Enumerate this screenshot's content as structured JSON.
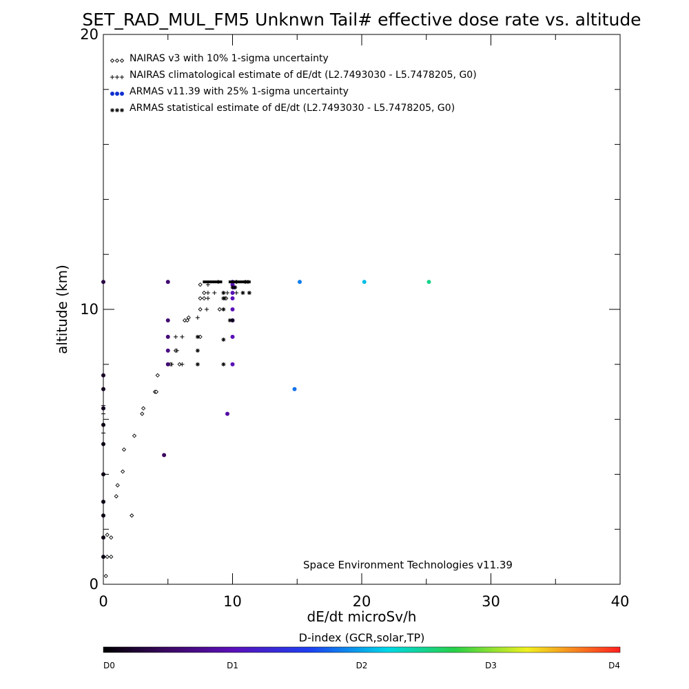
{
  "chart_data": {
    "type": "scatter",
    "title": "SET_RAD_MUL_FM5 Unknwn Tail#  effective dose rate vs. altitude",
    "xlabel": "dE/dt microSv/h",
    "ylabel": "altitude (km)",
    "xlim": [
      0,
      40
    ],
    "ylim": [
      0,
      20
    ],
    "x_ticks": [
      0,
      10,
      20,
      30,
      40
    ],
    "x_minor_ticks": [
      5,
      15,
      25,
      35
    ],
    "y_ticks": [
      0,
      10,
      20
    ],
    "y_minor_ticks": [
      2,
      4,
      6,
      8,
      12,
      14,
      16,
      18
    ],
    "grid": false,
    "legend_position": "top-left",
    "credit": "Space Environment Technologies v11.39",
    "legend": [
      {
        "marker": "diamond",
        "color": "#000000",
        "label": "NAIRAS v3 with 10% 1-sigma uncertainty"
      },
      {
        "marker": "plus",
        "color": "#000000",
        "label": "NAIRAS climatological estimate of dE/dt (L2.7493030 - L5.7478205, G0)"
      },
      {
        "marker": "dot",
        "color": "#1030d0",
        "label": "ARMAS v11.39 with 25% 1-sigma uncertainty"
      },
      {
        "marker": "asterisk",
        "color": "#000000",
        "label": "ARMAS statistical estimate of dE/dt (L2.7493030 - L5.7478205, G0)"
      }
    ],
    "series": [
      {
        "marker": "diamond",
        "x": [
          0.2,
          0.3,
          0.3,
          0.6,
          0.6,
          1.0,
          1.1,
          1.5,
          1.6,
          2.2,
          2.4,
          3.0,
          3.1,
          4.0,
          4.1,
          4.2,
          5.2,
          5.6,
          5.9,
          6.3,
          6.5,
          6.6,
          7.5,
          7.5,
          7.5,
          7.5,
          7.8,
          7.8,
          9.0,
          9.5,
          10.0,
          10.3
        ],
        "y": [
          0.3,
          1.0,
          1.8,
          1.0,
          1.7,
          3.2,
          3.6,
          4.1,
          4.9,
          2.5,
          5.4,
          6.2,
          6.4,
          7.0,
          7.0,
          7.6,
          8.0,
          8.5,
          8.0,
          9.6,
          9.6,
          9.7,
          9.0,
          10.0,
          10.4,
          10.9,
          10.4,
          10.6,
          10.0,
          10.4,
          10.6,
          11.0
        ]
      },
      {
        "marker": "plus",
        "x": [
          0.0,
          0.0,
          0.0,
          5.3,
          5.7,
          5.6,
          6.1,
          6.1,
          7.3,
          8.0,
          8.1,
          8.1,
          8.1,
          8.6,
          8.9,
          9.4,
          9.6,
          10.3,
          10.8,
          11.2
        ],
        "y": [
          5.5,
          6.2,
          6.5,
          8.0,
          8.5,
          9.0,
          9.0,
          8.0,
          9.7,
          10.0,
          10.4,
          10.6,
          10.9,
          10.6,
          11.0,
          10.4,
          10.6,
          10.6,
          10.6,
          11.0
        ]
      },
      {
        "marker": "dot",
        "x": [
          0.0,
          0.0,
          0.0,
          0.0,
          0.0,
          0.0,
          0.0,
          0.0,
          0.0,
          0.0,
          0.0,
          4.7,
          5.0,
          5.0,
          5.0,
          5.0,
          5.0,
          9.6,
          10.0,
          10.0,
          10.0,
          10.0,
          10.0,
          10.0,
          10.0,
          10.0,
          10.1,
          15.2,
          20.2,
          25.2,
          14.8
        ],
        "y": [
          11.0,
          7.6,
          7.1,
          6.4,
          5.8,
          5.1,
          4.0,
          3.0,
          2.5,
          1.7,
          1.0,
          4.7,
          11.0,
          9.6,
          9.0,
          8.5,
          8.0,
          6.2,
          11.0,
          10.4,
          10.0,
          9.6,
          9.0,
          8.0,
          10.6,
          10.9,
          10.8,
          11.0,
          11.0,
          11.0,
          7.1
        ],
        "color_index": [
          0.35,
          0.2,
          0.15,
          0.15,
          0.1,
          0.1,
          0.1,
          0.1,
          0.1,
          0.1,
          0.1,
          0.5,
          0.6,
          0.6,
          0.65,
          0.7,
          0.6,
          0.9,
          1.0,
          1.0,
          1.0,
          1.0,
          1.0,
          1.0,
          1.0,
          1.0,
          1.0,
          1.85,
          2.1,
          2.5,
          1.8
        ]
      },
      {
        "marker": "asterisk",
        "x": [
          7.3,
          7.3,
          7.3,
          9.3,
          9.3,
          9.8,
          9.3,
          9.3,
          9.3,
          10.0,
          10.2,
          10.8,
          11.3,
          11.0,
          10.0
        ],
        "y": [
          8.0,
          8.5,
          9.0,
          8.0,
          8.9,
          9.6,
          10.0,
          10.4,
          10.6,
          10.8,
          10.8,
          10.6,
          10.6,
          11.0,
          9.6
        ]
      }
    ],
    "dense_segments": [
      {
        "x_start": 7.7,
        "x_end": 9.2,
        "y": 11.0
      },
      {
        "x_start": 9.7,
        "x_end": 11.4,
        "y": 11.0
      }
    ],
    "colorbar": {
      "title": "D-index (GCR,solar,TP)",
      "tick_labels": [
        "D0",
        "D1",
        "D2",
        "D3",
        "D4"
      ],
      "tick_positions": [
        0,
        1,
        2,
        3,
        4
      ],
      "colors": [
        "#000000",
        "#5a0a8a",
        "#1c30e8",
        "#00e0e0",
        "#28d048",
        "#f0f020",
        "#ff2020"
      ]
    }
  }
}
